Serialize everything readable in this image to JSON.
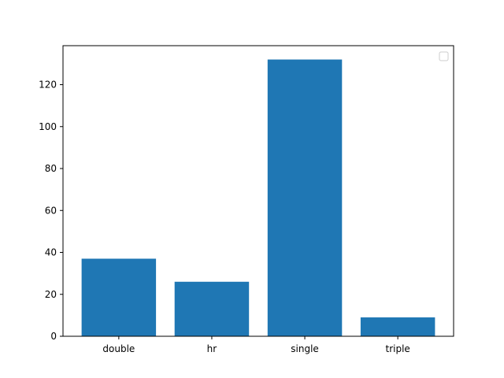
{
  "chart_data": {
    "type": "bar",
    "categories": [
      "double",
      "hr",
      "single",
      "triple"
    ],
    "values": [
      37,
      26,
      132,
      9
    ],
    "title": "",
    "xlabel": "",
    "ylabel": "",
    "ylim": [
      0,
      138.6
    ],
    "yticks": [
      0,
      20,
      40,
      60,
      80,
      100,
      120
    ],
    "bar_color": "#1f77b4",
    "grid": false,
    "legend": {
      "placement": "top-right",
      "entries": []
    }
  }
}
